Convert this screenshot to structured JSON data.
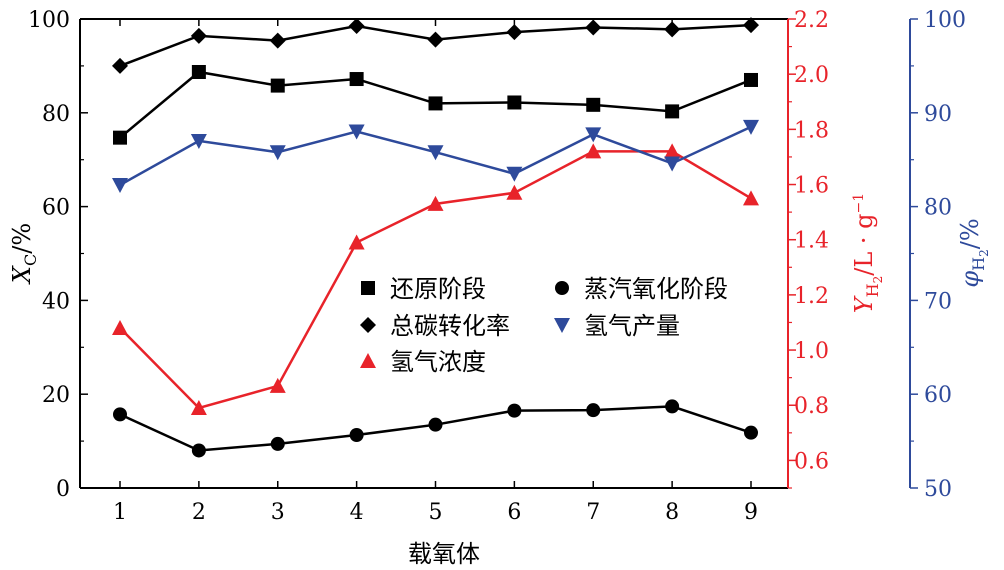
{
  "chart_data": {
    "type": "line",
    "categories": [
      "1",
      "2",
      "3",
      "4",
      "5",
      "6",
      "7",
      "8",
      "9"
    ],
    "xlabel": "载氧体",
    "axes": {
      "left": {
        "label_main": "X",
        "label_sub": "C",
        "label_unit": "/%",
        "range": [
          0,
          100
        ],
        "ticks": [
          "0",
          "20",
          "40",
          "60",
          "80",
          "100"
        ],
        "color": "#000000"
      },
      "right1": {
        "label_main": "Y",
        "label_sub": "H",
        "label_sub2": "2",
        "label_unit": "/L · g",
        "label_sup": "−1",
        "range": [
          0.5,
          2.2
        ],
        "ticks": [
          "0.6",
          "0.8",
          "1.0",
          "1.2",
          "1.4",
          "1.6",
          "1.8",
          "2.0",
          "2.2"
        ],
        "color": "#e8232a"
      },
      "right2": {
        "label_main": "φ",
        "label_sub": "H",
        "label_sub2": "2",
        "label_unit": "/%",
        "range": [
          50,
          100
        ],
        "ticks": [
          "50",
          "60",
          "70",
          "80",
          "90",
          "100"
        ],
        "color": "#2e4a9b"
      }
    },
    "series": [
      {
        "name": "还原阶段",
        "axis": "left",
        "marker": "square",
        "color": "#000000",
        "values": [
          74.7,
          88.7,
          85.8,
          87.2,
          82.0,
          82.2,
          81.7,
          80.3,
          87.0
        ]
      },
      {
        "name": "蒸汽氧化阶段",
        "axis": "left",
        "marker": "circle",
        "color": "#000000",
        "values": [
          15.7,
          8.0,
          9.4,
          11.3,
          13.5,
          16.5,
          16.6,
          17.4,
          11.8
        ]
      },
      {
        "name": "总碳转化率",
        "axis": "left",
        "marker": "diamond",
        "color": "#000000",
        "values": [
          90.0,
          96.4,
          95.4,
          98.5,
          95.6,
          97.2,
          98.2,
          97.8,
          98.7
        ]
      },
      {
        "name": "氢气浓度",
        "axis": "right1",
        "marker": "triangle-up",
        "color": "#e8232a",
        "values": [
          1.08,
          0.79,
          0.87,
          1.39,
          1.53,
          1.57,
          1.72,
          1.72,
          1.55
        ]
      },
      {
        "name": "氢气产量",
        "axis": "right2",
        "marker": "triangle-down",
        "color": "#2e4a9b",
        "values": [
          82.3,
          87.0,
          85.8,
          88.0,
          85.8,
          83.5,
          87.7,
          84.6,
          88.5
        ]
      }
    ],
    "legend": {
      "position": "center",
      "rows": [
        [
          "还原阶段",
          "蒸汽氧化阶段"
        ],
        [
          "总碳转化率",
          "氢气产量"
        ],
        [
          "氢气浓度"
        ]
      ]
    }
  }
}
